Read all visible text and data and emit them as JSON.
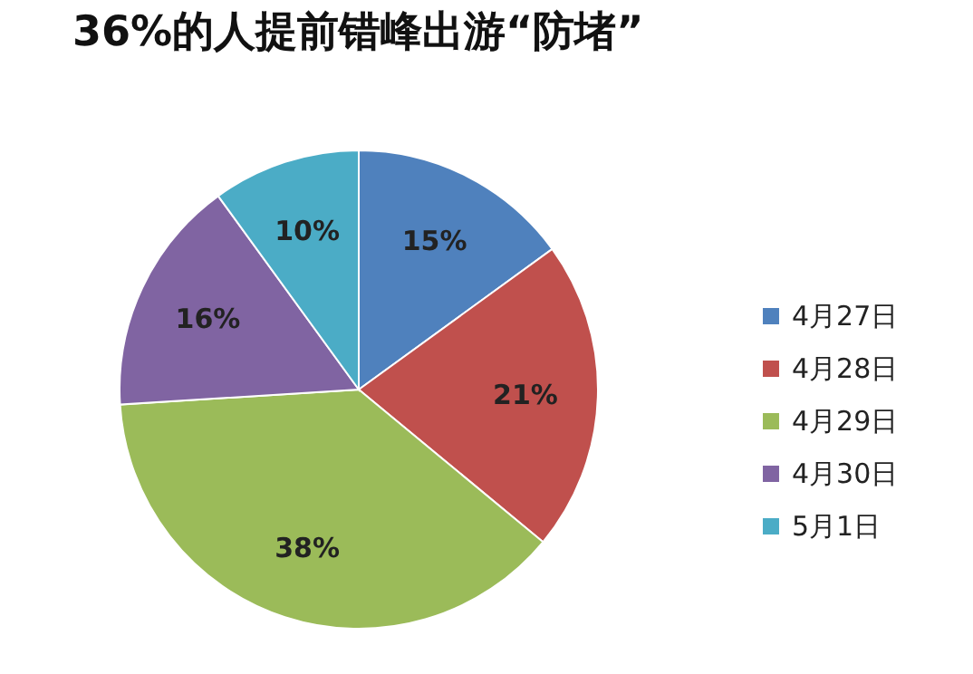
{
  "chart_data": {
    "type": "pie",
    "title": "36%的人提前错峰出游“防堵”",
    "categories": [
      "4月27日",
      "4月28日",
      "4月29日",
      "4月30日",
      "5月1日"
    ],
    "values": [
      15,
      21,
      38,
      16,
      10
    ],
    "colors": [
      "#4f81bd",
      "#c0504d",
      "#9bbb59",
      "#8064a2",
      "#4bacc6"
    ],
    "value_labels": [
      "15%",
      "21%",
      "38%",
      "16%",
      "10%"
    ],
    "legend": "right"
  }
}
